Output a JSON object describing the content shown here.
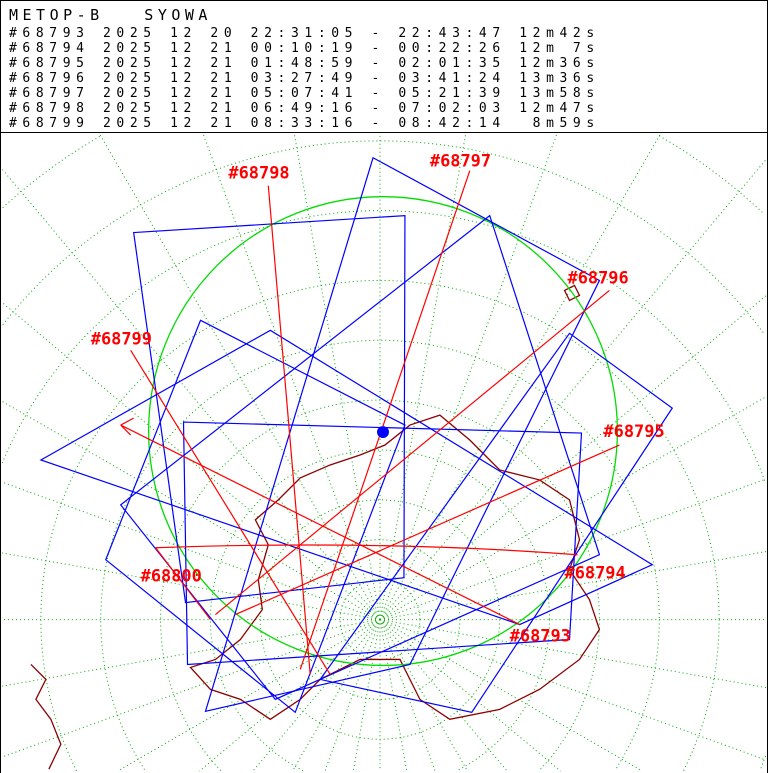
{
  "header": {
    "title": "METOP-B   SYOWA",
    "passes": [
      {
        "rev": "#68793",
        "line": "#68793 2025 12 20 22:31:05 - 22:43:47 12m42s"
      },
      {
        "rev": "#68794",
        "line": "#68794 2025 12 21 00:10:19 - 00:22:26 12m 7s"
      },
      {
        "rev": "#68795",
        "line": "#68795 2025 12 21 01:48:59 - 02:01:35 12m36s"
      },
      {
        "rev": "#68796",
        "line": "#68796 2025 12 21 03:27:49 - 03:41:24 13m36s"
      },
      {
        "rev": "#68797",
        "line": "#68797 2025 12 21 05:07:41 - 05:21:39 13m58s"
      },
      {
        "rev": "#68798",
        "line": "#68798 2025 12 21 06:49:16 - 07:02:03 12m47s"
      },
      {
        "rev": "#68799",
        "line": "#68799 2025 12 21 08:33:16 - 08:42:14  8m59s"
      }
    ]
  },
  "map": {
    "projection": "polar-stereographic-south",
    "station": "SYOWA",
    "track_labels": [
      "#68798",
      "#68797",
      "#68796",
      "#68799",
      "#68795",
      "#68794",
      "#68800",
      "#68793"
    ],
    "colors": {
      "track": "#ff0000",
      "swath": "#0000ff",
      "coverage": "#00dd00",
      "graticule": "#00aa00",
      "coast": "#8b0000",
      "station": "#0000ff"
    }
  }
}
